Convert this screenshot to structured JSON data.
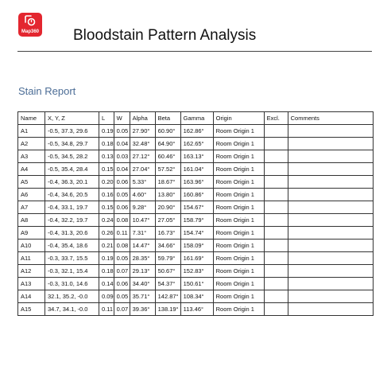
{
  "header": {
    "logo_text": "Map360",
    "title": "Bloodstain Pattern Analysis"
  },
  "section_title": "Stain Report",
  "table": {
    "columns": [
      "Name",
      "X, Y, Z",
      "L",
      "W",
      "Alpha",
      "Beta",
      "Gamma",
      "Origin",
      "Excl.",
      "Comments"
    ],
    "rows": [
      [
        "A1",
        "-0.5, 37.3, 29.6",
        "0.19",
        "0.05",
        "27.90°",
        "60.90°",
        "162.86°",
        "Room Origin 1",
        "",
        ""
      ],
      [
        "A2",
        "-0.5, 34.8, 29.7",
        "0.18",
        "0.04",
        "32.48°",
        "64.90°",
        "162.65°",
        "Room Origin 1",
        "",
        ""
      ],
      [
        "A3",
        "-0.5, 34.5, 28.2",
        "0.13",
        "0.03",
        "27.12°",
        "60.46°",
        "163.13°",
        "Room Origin 1",
        "",
        ""
      ],
      [
        "A4",
        "-0.5, 35.4, 28.4",
        "0.15",
        "0.04",
        "27.04°",
        "57.52°",
        "161.04°",
        "Room Origin 1",
        "",
        ""
      ],
      [
        "A5",
        "-0.4, 36.3, 20.1",
        "0.20",
        "0.06",
        "5.33°",
        "18.67°",
        "163.96°",
        "Room Origin 1",
        "",
        ""
      ],
      [
        "A6",
        "-0.4, 34.6, 20.5",
        "0.16",
        "0.05",
        "4.60°",
        "13.80°",
        "160.86°",
        "Room Origin 1",
        "",
        ""
      ],
      [
        "A7",
        "-0.4, 33.1, 19.7",
        "0.15",
        "0.06",
        "9.28°",
        "20.90°",
        "154.67°",
        "Room Origin 1",
        "",
        ""
      ],
      [
        "A8",
        "-0.4, 32.2, 19.7",
        "0.24",
        "0.08",
        "10.47°",
        "27.05°",
        "158.79°",
        "Room Origin 1",
        "",
        ""
      ],
      [
        "A9",
        "-0.4, 31.3, 20.6",
        "0.26",
        "0.11",
        "7.31°",
        "16.73°",
        "154.74°",
        "Room Origin 1",
        "",
        ""
      ],
      [
        "A10",
        "-0.4, 35.4, 18.6",
        "0.21",
        "0.08",
        "14.47°",
        "34.66°",
        "158.09°",
        "Room Origin 1",
        "",
        ""
      ],
      [
        "A11",
        "-0.3, 33.7, 15.5",
        "0.19",
        "0.05",
        "28.35°",
        "59.79°",
        "161.69°",
        "Room Origin 1",
        "",
        ""
      ],
      [
        "A12",
        "-0.3, 32.1, 15.4",
        "0.18",
        "0.07",
        "29.13°",
        "50.67°",
        "152.83°",
        "Room Origin 1",
        "",
        ""
      ],
      [
        "A13",
        "-0.3, 31.0, 14.6",
        "0.14",
        "0.06",
        "34.40°",
        "54.37°",
        "150.61°",
        "Room Origin 1",
        "",
        ""
      ],
      [
        "A14",
        "32.1, 35.2, -0.0",
        "0.09",
        "0.05",
        "35.71°",
        "142.87°",
        "108.34°",
        "Room Origin 1",
        "",
        ""
      ],
      [
        "A15",
        "34.7, 34.1, -0.0",
        "0.11",
        "0.07",
        "39.36°",
        "138.19°",
        "113.46°",
        "Room Origin 1",
        "",
        ""
      ]
    ]
  }
}
